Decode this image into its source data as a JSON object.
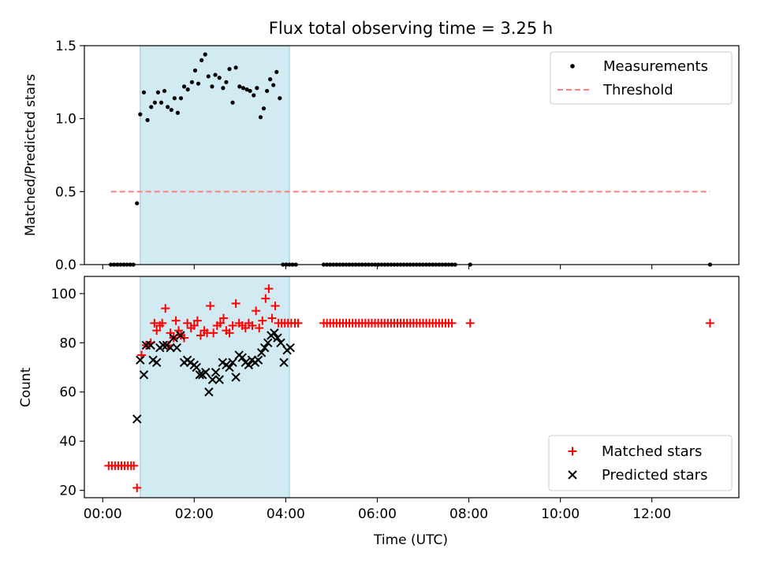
{
  "title": "Flux total observing time = 3.25 h",
  "colors": {
    "shade": "#add8e6",
    "measure": "#000000",
    "threshold": "#ff7f7f",
    "matched": "#ff0000",
    "predicted": "#000000"
  },
  "chart_data": [
    {
      "type": "scatter",
      "ylabel": "Matched/Predicted stars",
      "ylim": [
        0,
        1.5
      ],
      "yticks": [
        0,
        0.5,
        1.0,
        1.5
      ],
      "ytick_labels": [
        "0.0",
        "0.5",
        "1.0",
        "1.5"
      ],
      "xlim": [
        -0.4,
        13.9
      ],
      "shaded_interval": [
        0.82,
        4.08
      ],
      "legend_position": "top-right",
      "legend": [
        {
          "label": "Measurements",
          "key": "measurements"
        },
        {
          "label": "Threshold",
          "key": "threshold"
        }
      ],
      "threshold": {
        "value": 0.5,
        "x": [
          0.18,
          13.27
        ]
      },
      "series": [
        {
          "name": "Measurements",
          "x": [
            0.18,
            0.25,
            0.32,
            0.39,
            0.46,
            0.53,
            0.6,
            0.67,
            0.75,
            0.82,
            0.9,
            0.98,
            1.06,
            1.14,
            1.21,
            1.28,
            1.35,
            1.42,
            1.5,
            1.57,
            1.64,
            1.71,
            1.78,
            1.86,
            1.95,
            2.02,
            2.09,
            2.16,
            2.24,
            2.31,
            2.39,
            2.46,
            2.55,
            2.63,
            2.7,
            2.77,
            2.84,
            2.91,
            2.99,
            3.07,
            3.15,
            3.22,
            3.3,
            3.37,
            3.45,
            3.52,
            3.59,
            3.66,
            3.73,
            3.8,
            3.87,
            3.94,
            4.01,
            4.08,
            4.15,
            4.22,
            4.83,
            4.9,
            4.97,
            5.04,
            5.11,
            5.18,
            5.25,
            5.32,
            5.39,
            5.46,
            5.53,
            5.6,
            5.67,
            5.74,
            5.81,
            5.88,
            5.95,
            6.02,
            6.09,
            6.16,
            6.23,
            6.3,
            6.37,
            6.44,
            6.51,
            6.58,
            6.65,
            6.72,
            6.79,
            6.86,
            6.93,
            7.0,
            7.07,
            7.14,
            7.21,
            7.28,
            7.35,
            7.42,
            7.49,
            7.56,
            7.63,
            7.7,
            8.03,
            13.27
          ],
          "y": [
            0,
            0,
            0,
            0,
            0,
            0,
            0,
            0,
            0.42,
            1.03,
            1.18,
            0.99,
            1.08,
            1.11,
            1.18,
            1.11,
            1.19,
            1.08,
            1.06,
            1.14,
            1.04,
            1.14,
            1.22,
            1.2,
            1.25,
            1.33,
            1.24,
            1.4,
            1.44,
            1.29,
            1.22,
            1.3,
            1.28,
            1.21,
            1.25,
            1.34,
            1.11,
            1.35,
            1.22,
            1.21,
            1.2,
            1.19,
            1.16,
            1.21,
            1.01,
            1.07,
            1.19,
            1.27,
            1.23,
            1.32,
            1.14,
            0,
            0,
            0,
            0,
            0,
            0,
            0,
            0,
            0,
            0,
            0,
            0,
            0,
            0,
            0,
            0,
            0,
            0,
            0,
            0,
            0,
            0,
            0,
            0,
            0,
            0,
            0,
            0,
            0,
            0,
            0,
            0,
            0,
            0,
            0,
            0,
            0,
            0,
            0,
            0,
            0,
            0,
            0,
            0,
            0,
            0,
            0,
            0,
            0
          ]
        }
      ]
    },
    {
      "type": "scatter",
      "xlabel": "Time (UTC)",
      "ylabel": "Count",
      "ylim": [
        17,
        107
      ],
      "yticks": [
        20,
        40,
        60,
        80,
        100
      ],
      "ytick_labels": [
        "20",
        "40",
        "60",
        "80",
        "100"
      ],
      "xlim": [
        -0.4,
        13.9
      ],
      "xticks": [
        0,
        2,
        4,
        6,
        8,
        10,
        12
      ],
      "xtick_labels": [
        "00:00",
        "02:00",
        "04:00",
        "06:00",
        "08:00",
        "10:00",
        "12:00"
      ],
      "shaded_interval": [
        0.82,
        4.08
      ],
      "legend_position": "bottom-right",
      "legend": [
        {
          "label": "Matched stars",
          "key": "matched"
        },
        {
          "label": "Predicted stars",
          "key": "predicted"
        }
      ],
      "series": [
        {
          "name": "Matched stars",
          "x": [
            0.13,
            0.2,
            0.27,
            0.34,
            0.41,
            0.48,
            0.55,
            0.62,
            0.68,
            0.75,
            0.85,
            0.95,
            1.05,
            1.13,
            1.18,
            1.25,
            1.3,
            1.37,
            1.43,
            1.48,
            1.55,
            1.6,
            1.66,
            1.71,
            1.78,
            1.85,
            1.93,
            2.0,
            2.07,
            2.14,
            2.22,
            2.28,
            2.35,
            2.42,
            2.5,
            2.57,
            2.64,
            2.7,
            2.77,
            2.84,
            2.91,
            2.98,
            3.05,
            3.12,
            3.19,
            3.27,
            3.35,
            3.42,
            3.49,
            3.56,
            3.63,
            3.7,
            3.77,
            3.84,
            3.91,
            3.98,
            4.05,
            4.12,
            4.2,
            4.27,
            4.83,
            4.9,
            4.97,
            5.04,
            5.11,
            5.18,
            5.25,
            5.32,
            5.39,
            5.46,
            5.53,
            5.6,
            5.67,
            5.74,
            5.81,
            5.88,
            5.95,
            6.02,
            6.09,
            6.16,
            6.23,
            6.3,
            6.37,
            6.44,
            6.51,
            6.58,
            6.65,
            6.72,
            6.79,
            6.86,
            6.93,
            7.0,
            7.07,
            7.14,
            7.21,
            7.28,
            7.35,
            7.42,
            7.49,
            7.56,
            7.63,
            8.03,
            13.27
          ],
          "y": [
            30,
            30,
            30,
            30,
            30,
            30,
            30,
            30,
            30,
            21,
            75,
            79,
            80,
            88,
            85,
            87,
            88,
            94,
            79,
            84,
            82,
            89,
            85,
            83,
            82,
            88,
            86,
            87,
            89,
            83,
            85,
            84,
            95,
            84,
            87,
            88,
            90,
            85,
            84,
            87,
            96,
            88,
            87,
            86,
            88,
            87,
            93,
            86,
            89,
            98,
            102,
            90,
            95,
            88,
            88,
            88,
            88,
            88,
            88,
            88,
            88,
            88,
            88,
            88,
            88,
            88,
            88,
            88,
            88,
            88,
            88,
            88,
            88,
            88,
            88,
            88,
            88,
            88,
            88,
            88,
            88,
            88,
            88,
            88,
            88,
            88,
            88,
            88,
            88,
            88,
            88,
            88,
            88,
            88,
            88,
            88,
            88,
            88,
            88,
            88,
            88,
            88,
            88
          ]
        },
        {
          "name": "Predicted stars",
          "x": [
            0.75,
            0.82,
            0.9,
            0.95,
            1.05,
            1.1,
            1.18,
            1.25,
            1.32,
            1.4,
            1.48,
            1.55,
            1.62,
            1.7,
            1.78,
            1.85,
            1.92,
            2.0,
            2.05,
            2.12,
            2.18,
            2.25,
            2.32,
            2.4,
            2.47,
            2.55,
            2.62,
            2.7,
            2.77,
            2.84,
            2.91,
            2.98,
            3.05,
            3.12,
            3.19,
            3.26,
            3.33,
            3.4,
            3.47,
            3.54,
            3.61,
            3.68,
            3.75,
            3.82,
            3.89,
            3.96,
            4.03,
            4.1
          ],
          "y": [
            49,
            73,
            67,
            79,
            79,
            73,
            72,
            78,
            79,
            79,
            78,
            82,
            78,
            83,
            72,
            73,
            72,
            71,
            70,
            67,
            67,
            68,
            60,
            65,
            68,
            65,
            72,
            71,
            70,
            72,
            66,
            75,
            74,
            72,
            71,
            73,
            72,
            73,
            76,
            78,
            80,
            83,
            84,
            82,
            80,
            72,
            77,
            78
          ]
        }
      ]
    }
  ]
}
